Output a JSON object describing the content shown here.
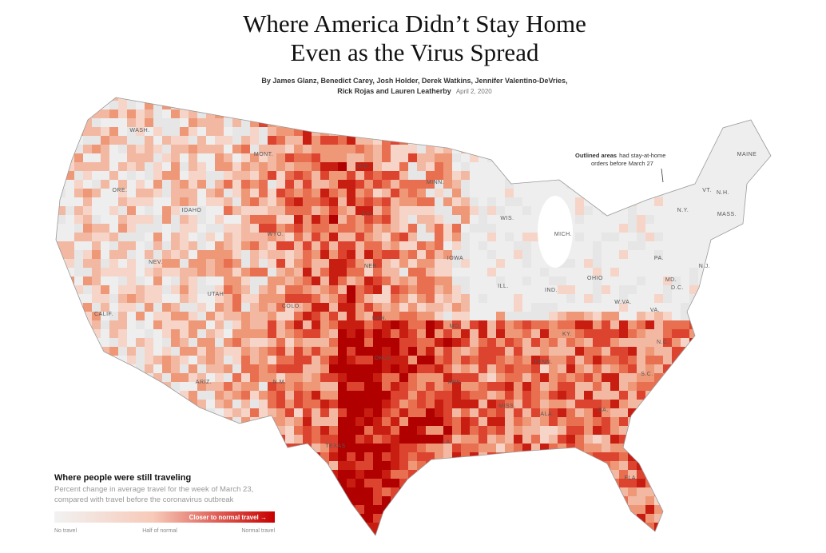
{
  "header": {
    "title_line1": "Where America Didn’t Stay Home",
    "title_line2": "Even as the Virus Spread",
    "byline_line1": "By James Glanz, Benedict Carey, Josh Holder, Derek Watkins, Jennifer Valentino-DeVries,",
    "byline_line2": "Rick Rojas and Lauren Leatherby",
    "date": "April 2, 2020"
  },
  "annotation": {
    "bold": "Outlined areas",
    "line1": "had stay-at-home",
    "line2": "orders before March 27"
  },
  "legend": {
    "title": "Where people were still traveling",
    "desc_line1": "Percent change in average travel for the week of March 23,",
    "desc_line2": "compared with travel before the coronavirus outbreak",
    "bar_label": "Closer to normal travel →",
    "low": "No travel",
    "mid": "Half of normal",
    "high": "Normal travel"
  },
  "state_labels": [
    "WASH.",
    "ORE.",
    "CALIF.",
    "NEV.",
    "IDAHO",
    "MONT.",
    "WYO.",
    "UTAH",
    "ARIZ.",
    "N.M.",
    "COLO.",
    "N.D.",
    "S.D.",
    "NEB.",
    "KAN.",
    "OKLA.",
    "TEXAS",
    "MINN.",
    "IOWA",
    "MO.",
    "ARK.",
    "LA.",
    "WIS.",
    "ILL.",
    "MICH.",
    "IND.",
    "OHIO",
    "KY.",
    "TENN.",
    "MISS.",
    "ALA.",
    "GA.",
    "FLA.",
    "S.C.",
    "N.C.",
    "VA.",
    "W.VA.",
    "PA.",
    "N.Y.",
    "VT.",
    "N.H.",
    "MAINE",
    "MASS.",
    "N.J.",
    "MD.",
    "D.C."
  ]
}
